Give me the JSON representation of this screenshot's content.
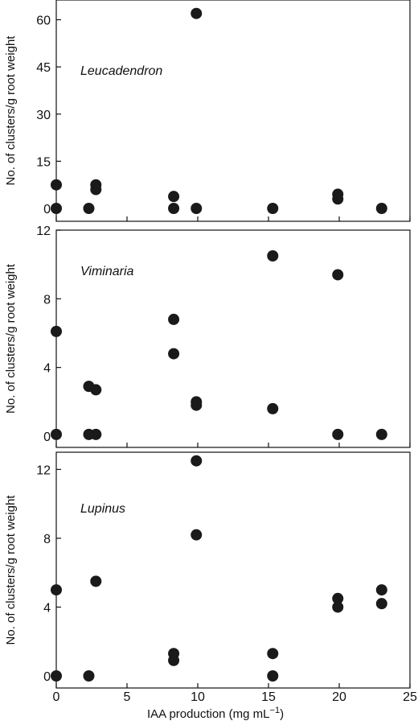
{
  "figure": {
    "xlabel_main": "IAA production (mg mL",
    "xlabel_sup": "−1",
    "xlabel_end": ")"
  },
  "chart_data": [
    {
      "type": "scatter",
      "title": "Leucadendron",
      "ylabel": "No. of clusters/g root weight",
      "xlim": [
        0,
        25
      ],
      "ylim": [
        0,
        65
      ],
      "xticks": [
        0,
        5,
        10,
        15,
        20,
        25
      ],
      "yticks": [
        0,
        15,
        30,
        45,
        60
      ],
      "points": [
        {
          "x": 0,
          "y": 7.5
        },
        {
          "x": 0,
          "y": 0
        },
        {
          "x": 2.3,
          "y": 0
        },
        {
          "x": 2.8,
          "y": 7.5
        },
        {
          "x": 2.8,
          "y": 6
        },
        {
          "x": 8.3,
          "y": 3.8
        },
        {
          "x": 8.3,
          "y": 0
        },
        {
          "x": 9.9,
          "y": 62
        },
        {
          "x": 9.9,
          "y": 0
        },
        {
          "x": 15.3,
          "y": 0
        },
        {
          "x": 19.9,
          "y": 4.5
        },
        {
          "x": 19.9,
          "y": 3
        },
        {
          "x": 23,
          "y": 0
        }
      ]
    },
    {
      "type": "scatter",
      "title": "Viminaria",
      "ylabel": "No. of clusters/g root weight",
      "xlim": [
        0,
        25
      ],
      "ylim": [
        0,
        12
      ],
      "xticks": [
        0,
        5,
        10,
        15,
        20,
        25
      ],
      "yticks": [
        0,
        4,
        8,
        12
      ],
      "points": [
        {
          "x": 0,
          "y": 6.1
        },
        {
          "x": 0,
          "y": 0.1
        },
        {
          "x": 2.3,
          "y": 2.9
        },
        {
          "x": 2.3,
          "y": 0.1
        },
        {
          "x": 2.8,
          "y": 2.7
        },
        {
          "x": 2.8,
          "y": 0.1
        },
        {
          "x": 8.3,
          "y": 6.8
        },
        {
          "x": 8.3,
          "y": 4.8
        },
        {
          "x": 9.9,
          "y": 2.0
        },
        {
          "x": 9.9,
          "y": 1.8
        },
        {
          "x": 15.3,
          "y": 10.5
        },
        {
          "x": 15.3,
          "y": 1.6
        },
        {
          "x": 19.9,
          "y": 9.4
        },
        {
          "x": 19.9,
          "y": 0.1
        },
        {
          "x": 23,
          "y": 0.1
        }
      ]
    },
    {
      "type": "scatter",
      "title": "Lupinus",
      "ylabel": "No. of clusters/g root weight",
      "xlim": [
        0,
        25
      ],
      "ylim": [
        0,
        13
      ],
      "xticks": [
        0,
        5,
        10,
        15,
        20,
        25
      ],
      "yticks": [
        0,
        4,
        8,
        12
      ],
      "points": [
        {
          "x": 0,
          "y": 5.0
        },
        {
          "x": 0,
          "y": 0
        },
        {
          "x": 2.3,
          "y": 0
        },
        {
          "x": 2.8,
          "y": 5.5
        },
        {
          "x": 8.3,
          "y": 1.3
        },
        {
          "x": 8.3,
          "y": 0.9
        },
        {
          "x": 9.9,
          "y": 12.5
        },
        {
          "x": 9.9,
          "y": 8.2
        },
        {
          "x": 15.3,
          "y": 1.3
        },
        {
          "x": 15.3,
          "y": 0
        },
        {
          "x": 19.9,
          "y": 4.5
        },
        {
          "x": 19.9,
          "y": 4.0
        },
        {
          "x": 23,
          "y": 5.0
        },
        {
          "x": 23,
          "y": 4.2
        }
      ]
    }
  ]
}
